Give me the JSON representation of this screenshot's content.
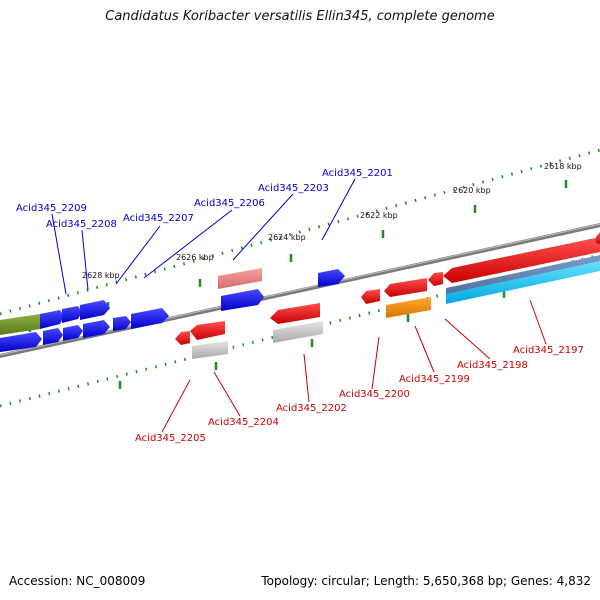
{
  "title": "Candidatus Koribacter versatilis Ellin345, complete genome",
  "footer": {
    "accession": "Accession: NC_008009",
    "stats": "Topology: circular; Length: 5,650,368 bp; Genes: 4,832"
  },
  "colors": {
    "forward_gene": "#0000ff",
    "reverse_gene": "#ff0000",
    "forward_label": "#0000cc",
    "reverse_label": "#cc0000",
    "backbone": "#808080",
    "tick": "#228b22"
  },
  "scale_labels": [
    "2618 kbp",
    "2620 kbp",
    "2622 kbp",
    "2624 kbp",
    "2626 kbp",
    "2628 kbp"
  ],
  "forward_labels": [
    "Acid345_2209",
    "Acid345_2208",
    "Acid345_2207",
    "Acid345_2206",
    "Acid345_2203",
    "Acid345_2201"
  ],
  "reverse_labels": [
    "Acid345_2205",
    "Acid345_2204",
    "Acid345_2202",
    "Acid345_2200",
    "Acid345_2199",
    "Acid345_2198",
    "Acid345_2197"
  ]
}
